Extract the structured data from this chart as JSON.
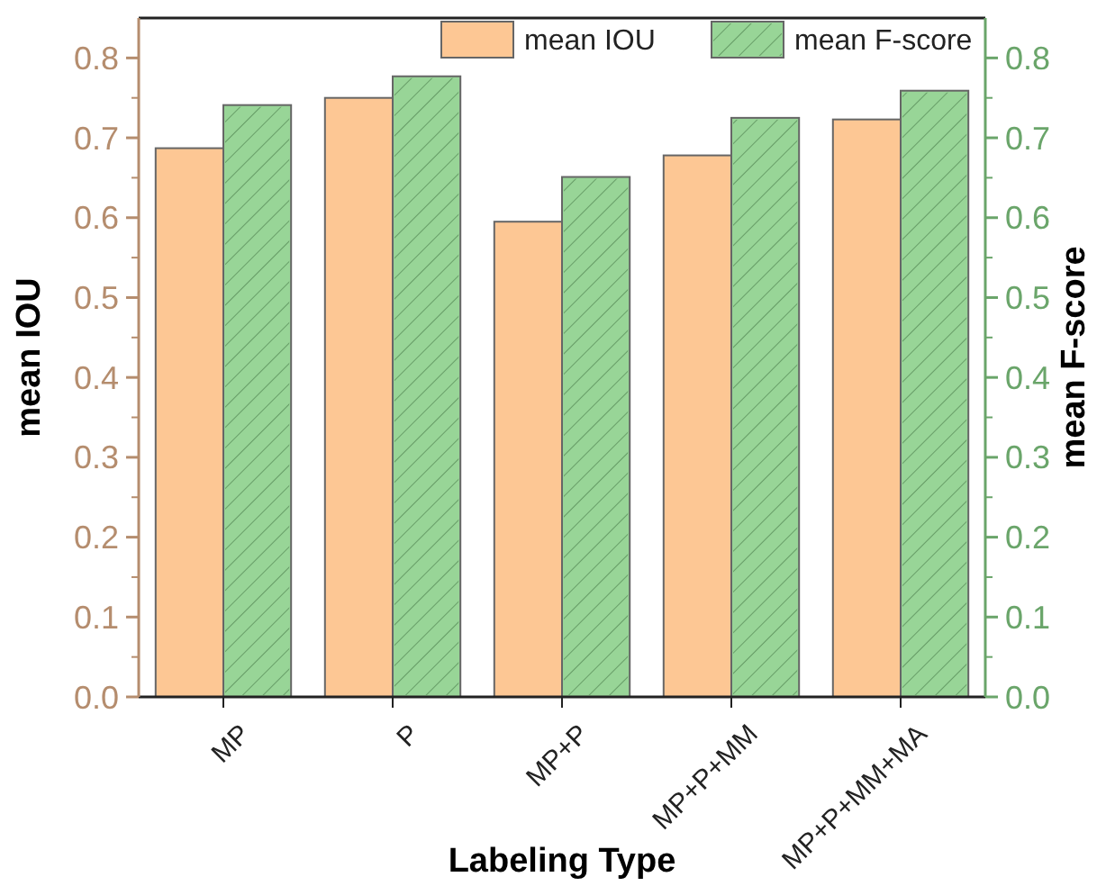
{
  "chart_data": {
    "type": "bar",
    "xlabel": "Labeling Type",
    "ylabel": "mean IOU",
    "y2label": "mean F-score",
    "categories": [
      "MP",
      "P",
      "MP+P",
      "MP+P+MM",
      "MP+P+MM+MA"
    ],
    "series": [
      {
        "name": "mean IOU",
        "color": "#fdc794",
        "values": [
          0.687,
          0.75,
          0.595,
          0.678,
          0.723
        ]
      },
      {
        "name": "mean F-score",
        "color": "#98d597",
        "axis": "y2",
        "values": [
          0.741,
          0.777,
          0.651,
          0.725,
          0.759
        ]
      }
    ],
    "ylim": [
      0,
      0.85
    ],
    "yticks": [
      "0.0",
      0.1,
      0.2,
      0.3,
      0.4,
      0.5,
      0.6,
      0.7,
      0.8
    ],
    "y2lim": [
      0,
      0.85
    ],
    "y2ticks": [
      "0.0",
      0.1,
      0.2,
      0.3,
      0.4,
      0.5,
      0.6,
      0.7,
      0.8
    ],
    "grid": false,
    "legend": "top right"
  }
}
